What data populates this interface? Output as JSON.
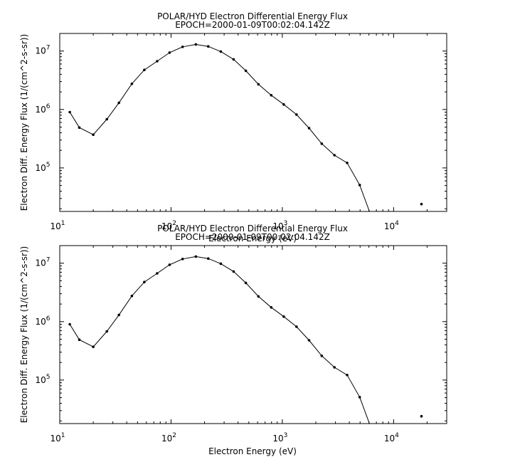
{
  "chart_data": [
    {
      "type": "line",
      "title": "POLAR/HYD  Electron Differential Energy Flux",
      "subtitle": "EPOCH=2000-01-09T00:02:04.142Z",
      "xlabel": "Electron Energy (eV)",
      "ylabel": "Electron Diff. Energy Flux (1/(cm^2-s-sr))",
      "xscale": "log",
      "yscale": "log",
      "xlim": [
        10,
        30000
      ],
      "ylim": [
        18000,
        20000000
      ],
      "x_ticks": [
        {
          "base": "10",
          "exp": "1",
          "value": 10
        },
        {
          "base": "10",
          "exp": "2",
          "value": 100
        },
        {
          "base": "10",
          "exp": "3",
          "value": 1000
        },
        {
          "base": "10",
          "exp": "4",
          "value": 10000
        }
      ],
      "y_ticks": [
        {
          "base": "10",
          "exp": "5",
          "value": 100000
        },
        {
          "base": "10",
          "exp": "6",
          "value": 1000000
        },
        {
          "base": "10",
          "exp": "7",
          "value": 10000000
        }
      ],
      "x": [
        12.3,
        15.0,
        20.0,
        26.5,
        34.0,
        44.5,
        57.5,
        75.0,
        97.0,
        127.0,
        167.0,
        216.0,
        280.0,
        365.0,
        470.0,
        610.0,
        795.0,
        1030.0,
        1340.0,
        1740.0,
        2260.0,
        2940.0,
        3820.0,
        4960.0,
        6200.0,
        17800.0
      ],
      "y": [
        900000,
        490000,
        370000,
        680000,
        1300000,
        2750000,
        4750000,
        6700000,
        9400000,
        11800000,
        13000000,
        12000000,
        9800000,
        7200000,
        4600000,
        2700000,
        1750000,
        1220000,
        820000,
        480000,
        260000,
        165000,
        122000,
        51000,
        16000,
        24000
      ],
      "markers": [
        true,
        true,
        true,
        true,
        true,
        true,
        true,
        true,
        true,
        true,
        true,
        true,
        true,
        true,
        true,
        true,
        true,
        true,
        true,
        true,
        true,
        true,
        true,
        true,
        false,
        true
      ],
      "gap_after_index": 24
    },
    {
      "type": "line",
      "title": "POLAR/HYD  Electron Differential Energy Flux",
      "subtitle": "EPOCH=2000-01-09T00:02:04.142Z",
      "xlabel": "Electron Energy (eV)",
      "ylabel": "Electron Diff. Energy Flux (1/(cm^2-s-sr))",
      "xscale": "log",
      "yscale": "log",
      "xlim": [
        10,
        30000
      ],
      "ylim": [
        18000,
        20000000
      ],
      "x_ticks": [
        {
          "base": "10",
          "exp": "1",
          "value": 10
        },
        {
          "base": "10",
          "exp": "2",
          "value": 100
        },
        {
          "base": "10",
          "exp": "3",
          "value": 1000
        },
        {
          "base": "10",
          "exp": "4",
          "value": 10000
        }
      ],
      "y_ticks": [
        {
          "base": "10",
          "exp": "5",
          "value": 100000
        },
        {
          "base": "10",
          "exp": "6",
          "value": 1000000
        },
        {
          "base": "10",
          "exp": "7",
          "value": 10000000
        }
      ],
      "x": [
        12.3,
        15.0,
        20.0,
        26.5,
        34.0,
        44.5,
        57.5,
        75.0,
        97.0,
        127.0,
        167.0,
        216.0,
        280.0,
        365.0,
        470.0,
        610.0,
        795.0,
        1030.0,
        1340.0,
        1740.0,
        2260.0,
        2940.0,
        3820.0,
        4960.0,
        6200.0,
        17800.0
      ],
      "y": [
        900000,
        490000,
        370000,
        680000,
        1300000,
        2750000,
        4750000,
        6700000,
        9400000,
        11800000,
        13000000,
        12000000,
        9800000,
        7200000,
        4600000,
        2700000,
        1750000,
        1220000,
        820000,
        480000,
        260000,
        165000,
        122000,
        51000,
        16000,
        24000
      ],
      "markers": [
        true,
        true,
        true,
        true,
        true,
        true,
        true,
        true,
        true,
        true,
        true,
        true,
        true,
        true,
        true,
        true,
        true,
        true,
        true,
        true,
        true,
        true,
        true,
        true,
        false,
        true
      ],
      "gap_after_index": 24
    }
  ],
  "colors": {
    "background": "#ffffff",
    "ink": "#000000"
  }
}
